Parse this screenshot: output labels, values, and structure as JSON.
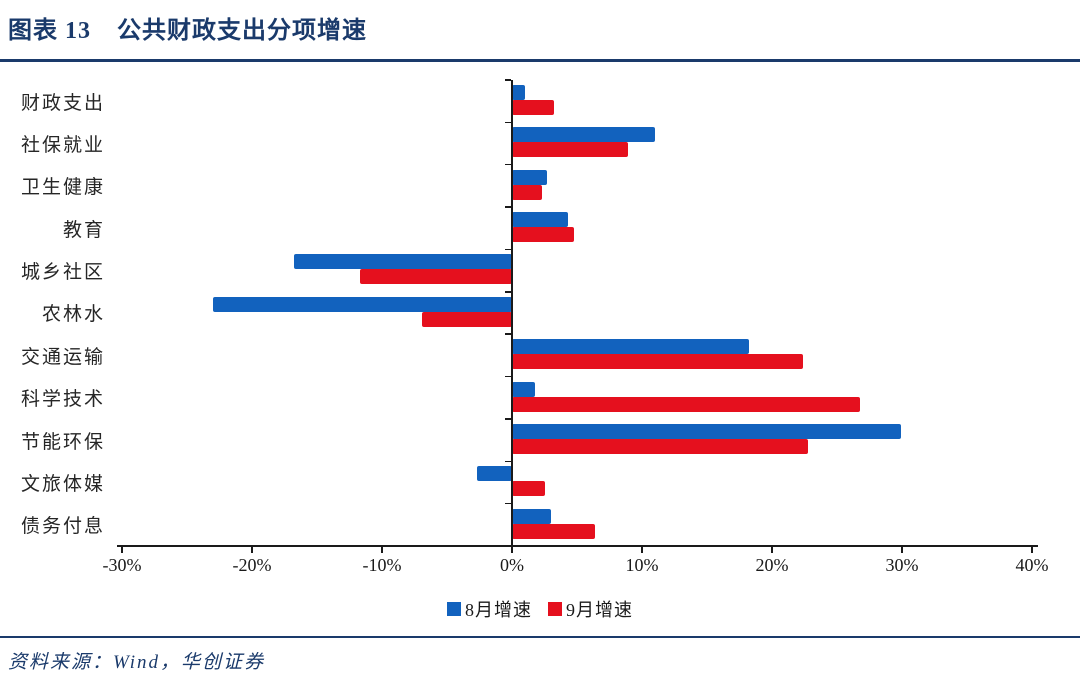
{
  "header": {
    "figure_label": "图表 13",
    "title": "公共财政支出分项增速"
  },
  "footer": {
    "source_text": "资料来源：Wind，华创证券"
  },
  "colors": {
    "accent_navy": "#1a3a6b",
    "series_aug_blue": "#1262be",
    "series_sep_red": "#e5101e",
    "axis_black": "#1a1a1a"
  },
  "chart_data": {
    "type": "bar",
    "orientation": "horizontal",
    "title": "公共财政支出分项增速",
    "categories": [
      "财政支出",
      "社保就业",
      "卫生健康",
      "教育",
      "城乡社区",
      "农林水",
      "交通运输",
      "科学技术",
      "节能环保",
      "文旅体媒",
      "债务付息"
    ],
    "series": [
      {
        "name": "8月增速",
        "color_key": "series_aug_blue",
        "values": [
          1.0,
          11.0,
          2.7,
          4.3,
          -16.8,
          -23.0,
          18.2,
          1.8,
          29.9,
          -2.7,
          3.0
        ]
      },
      {
        "name": "9月增速",
        "color_key": "series_sep_red",
        "values": [
          3.2,
          8.9,
          2.3,
          4.8,
          -11.7,
          -6.9,
          22.4,
          26.8,
          22.8,
          2.5,
          6.4
        ]
      }
    ],
    "x_axis": {
      "min": -30,
      "max": 40,
      "tick_step": 10,
      "tick_labels": [
        "-30%",
        "-20%",
        "-10%",
        "0%",
        "10%",
        "20%",
        "30%",
        "40%"
      ],
      "unit": "%"
    },
    "legend": [
      "8月增速",
      "9月增速"
    ],
    "legend_position": "bottom",
    "grid": false
  }
}
